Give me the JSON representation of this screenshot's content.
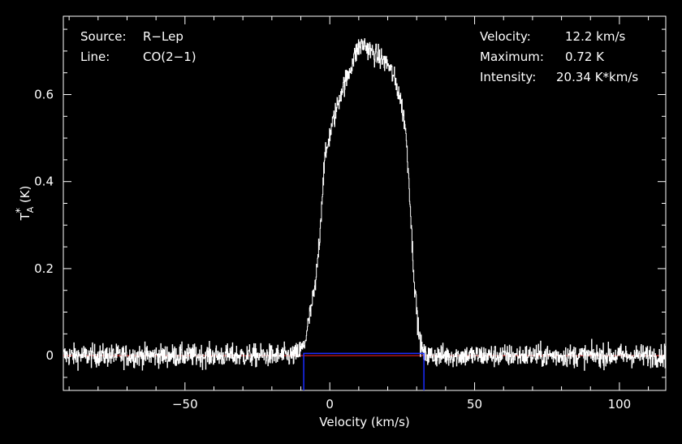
{
  "chart_data": {
    "type": "line",
    "xlabel": "Velocity (km/s)",
    "ylabel_main": "T",
    "ylabel_sup": "*",
    "ylabel_sub": "A",
    "ylabel_unit": "(K)",
    "xlim": [
      -92,
      116
    ],
    "ylim": [
      -0.08,
      0.78
    ],
    "xticks": [
      -50,
      0,
      50,
      100
    ],
    "yticks": [
      0,
      0.2,
      0.4,
      0.6
    ],
    "ytick_labels": [
      "0",
      "0.2",
      "0.4",
      "0.6"
    ],
    "info_left": [
      {
        "key": "Source:",
        "value": "R−Lep"
      },
      {
        "key": "Line:",
        "value": "CO(2−1)"
      }
    ],
    "info_right": [
      {
        "key": "Velocity:",
        "value": "12.2 km/s"
      },
      {
        "key": "Maximum:",
        "value": "0.72 K"
      },
      {
        "key": "Intensity:",
        "value": "20.34 K*km/s"
      }
    ],
    "baseline": {
      "value": 0,
      "color": "#ff2020"
    },
    "fit_window": {
      "x_start": -9,
      "x_end": 32.5,
      "level": 0.005,
      "y_bottom": -0.08,
      "color": "#1a2cff"
    },
    "spectrum_profile": [
      [
        -92,
        0
      ],
      [
        -12,
        0
      ],
      [
        -9,
        0.02
      ],
      [
        -7,
        0.09
      ],
      [
        -5,
        0.16
      ],
      [
        -3.5,
        0.28
      ],
      [
        -2,
        0.44
      ],
      [
        0,
        0.51
      ],
      [
        2,
        0.56
      ],
      [
        4,
        0.61
      ],
      [
        6,
        0.64
      ],
      [
        8,
        0.68
      ],
      [
        10,
        0.71
      ],
      [
        12,
        0.715
      ],
      [
        14,
        0.7
      ],
      [
        16,
        0.69
      ],
      [
        18,
        0.68
      ],
      [
        20,
        0.67
      ],
      [
        22,
        0.64
      ],
      [
        24,
        0.6
      ],
      [
        26,
        0.53
      ],
      [
        27.5,
        0.38
      ],
      [
        28.5,
        0.24
      ],
      [
        29.5,
        0.14
      ],
      [
        30.5,
        0.06
      ],
      [
        31.5,
        0.02
      ],
      [
        32.5,
        0
      ],
      [
        116,
        0
      ]
    ],
    "noise_rms": 0.013,
    "series": [
      {
        "color": "#ffffff"
      }
    ]
  }
}
